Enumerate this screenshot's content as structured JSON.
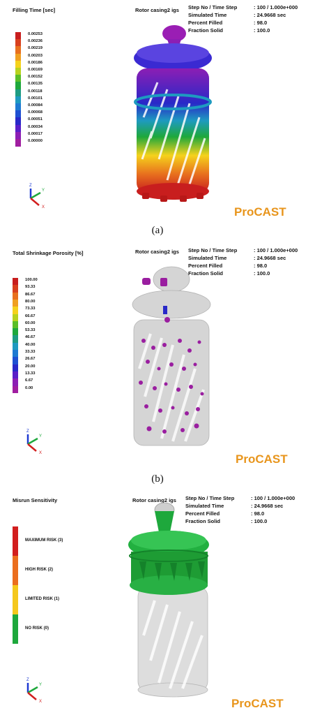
{
  "panels": [
    {
      "title": "Filling Time [sec]",
      "model": "Rotor casing2 igs",
      "info": [
        {
          "label": "Step No / Time Step",
          "value": ": 100 / 1.000e+000"
        },
        {
          "label": "Simulated Time",
          "value": ": 24.9668 sec"
        },
        {
          "label": "Percent Filled",
          "value": ": 98.0"
        },
        {
          "label": "Fraction Solid",
          "value": ": 100.0"
        }
      ],
      "legend": [
        "0.00253",
        "0.00236",
        "0.00219",
        "0.00203",
        "0.00186",
        "0.00169",
        "0.00152",
        "0.00135",
        "0.00118",
        "0.00101",
        "0.00084",
        "0.00068",
        "0.00051",
        "0.00034",
        "0.00017",
        "0.00000"
      ],
      "colors": [
        "#c81e1e",
        "#d8401e",
        "#e8701e",
        "#f0a020",
        "#f5d21c",
        "#b8d21e",
        "#5abe28",
        "#1ea83c",
        "#1e9c82",
        "#1e9ac0",
        "#1e7ad2",
        "#1e50d2",
        "#2828c8",
        "#5a1ec8",
        "#8c1eb4",
        "#a01ea0"
      ],
      "caption": "(a)",
      "brand": "ProCAST",
      "axes": {
        "z": "Z",
        "y": "Y",
        "x": "X"
      }
    },
    {
      "title": "Total Shrinkage Porosity [%]",
      "model": "Rotor casing2 igs",
      "info": [
        {
          "label": "Step No / Time Step",
          "value": ": 100 / 1.000e+000"
        },
        {
          "label": "Simulated Time",
          "value": ": 24.9668 sec"
        },
        {
          "label": "Percent Filled",
          "value": ": 98.0"
        },
        {
          "label": "Fraction Solid",
          "value": ": 100.0"
        }
      ],
      "legend": [
        "100.00",
        "93.33",
        "86.67",
        "80.00",
        "73.33",
        "66.67",
        "60.00",
        "53.33",
        "46.67",
        "40.00",
        "33.33",
        "26.67",
        "20.00",
        "13.33",
        "6.67",
        "0.00"
      ],
      "colors": [
        "#c81e1e",
        "#d8401e",
        "#e8701e",
        "#f0a020",
        "#f5d21c",
        "#b8d21e",
        "#5abe28",
        "#1ea83c",
        "#1e9c82",
        "#1e9ac0",
        "#1e7ad2",
        "#1e50d2",
        "#2828c8",
        "#5a1ec8",
        "#8c1eb4",
        "#a01ea0"
      ],
      "caption": "(b)",
      "brand": "ProCAST",
      "axes": {
        "z": "Z",
        "y": "Y",
        "x": "X"
      }
    },
    {
      "title": "Misrun Sensitivity",
      "model": "Rotor casing2 igs",
      "info": [
        {
          "label": "Step No / Time Step",
          "value": ": 100 / 1.000e+000"
        },
        {
          "label": "Simulated Time",
          "value": ": 24.9668 sec"
        },
        {
          "label": "Percent Filled",
          "value": ": 98.0"
        },
        {
          "label": "Fraction Solid",
          "value": ": 100.0"
        }
      ],
      "risk": [
        "MAXIMUM RISK (3)",
        "HIGH RISK (2)",
        "LIMITED RISK (1)",
        "NO RISK (0)"
      ],
      "risk_colors": [
        "#d21e1e",
        "#eb6e1e",
        "#f5c81c",
        "#1ea83c"
      ],
      "brand": "ProCAST",
      "axes": {
        "z": "Z",
        "y": "Y",
        "x": "X"
      }
    }
  ]
}
